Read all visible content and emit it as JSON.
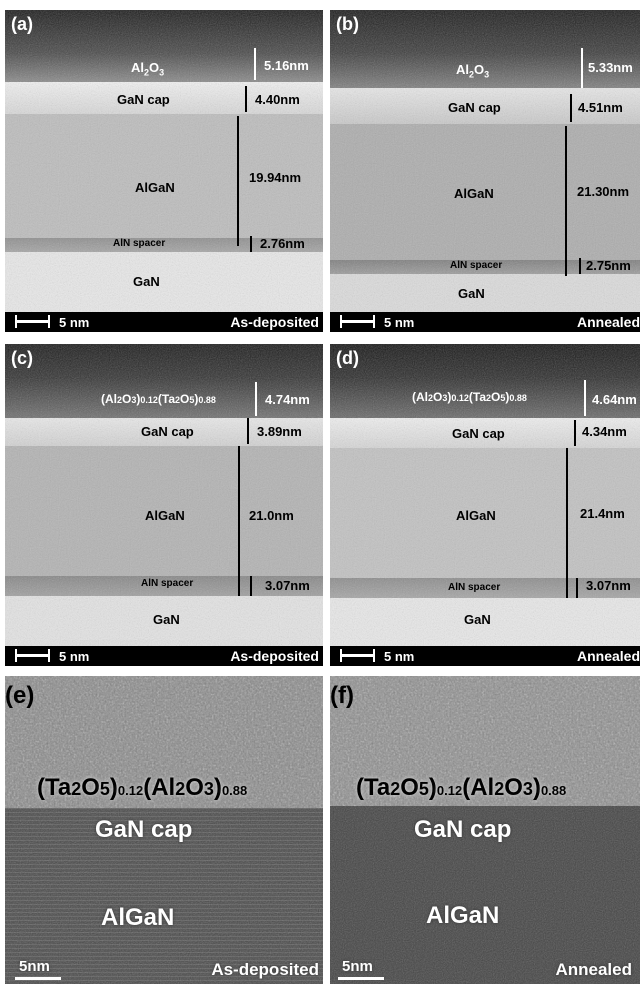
{
  "panels": {
    "a": {
      "letter": "(a)",
      "condition": "As-deposited",
      "scale": "5 nm",
      "oxide": "Al2O3",
      "oxide_thickness": "5.16nm",
      "cap": "GaN cap",
      "cap_thickness": "4.40nm",
      "barrier": "AlGaN",
      "barrier_thickness": "19.94nm",
      "spacer": "AlN spacer",
      "spacer_thickness": "2.76nm",
      "substrate": "GaN"
    },
    "b": {
      "letter": "(b)",
      "condition": "Annealed",
      "scale": "5 nm",
      "oxide": "Al2O3",
      "oxide_thickness": "5.33nm",
      "cap": "GaN cap",
      "cap_thickness": "4.51nm",
      "barrier": "AlGaN",
      "barrier_thickness": "21.30nm",
      "spacer": "AlN spacer",
      "spacer_thickness": "2.75nm",
      "substrate": "GaN"
    },
    "c": {
      "letter": "(c)",
      "condition": "As-deposited",
      "scale": "5 nm",
      "oxide": "(Al2O3)0.12(Ta2O5)0.88",
      "oxide_thickness": "4.74nm",
      "cap": "GaN cap",
      "cap_thickness": "3.89nm",
      "barrier": "AlGaN",
      "barrier_thickness": "21.0nm",
      "spacer": "AlN spacer",
      "spacer_thickness": "3.07nm",
      "substrate": "GaN"
    },
    "d": {
      "letter": "(d)",
      "condition": "Annealed",
      "scale": "5 nm",
      "oxide": "(Al2O3)0.12(Ta2O5)0.88",
      "oxide_thickness": "4.64nm",
      "cap": "GaN cap",
      "cap_thickness": "4.34nm",
      "barrier": "AlGaN",
      "barrier_thickness": "21.4nm",
      "spacer": "AlN spacer",
      "spacer_thickness": "3.07nm",
      "substrate": "GaN"
    },
    "e": {
      "letter": "(e)",
      "condition": "As-deposited",
      "scale": "5nm",
      "oxide": "(Ta2O5)0.12(Al2O3)0.88",
      "cap": "GaN cap",
      "barrier": "AlGaN"
    },
    "f": {
      "letter": "(f)",
      "condition": "Annealed",
      "scale": "5nm",
      "oxide": "(Ta2O5)0.12(Al2O3)0.88",
      "cap": "GaN cap",
      "barrier": "AlGaN"
    }
  }
}
